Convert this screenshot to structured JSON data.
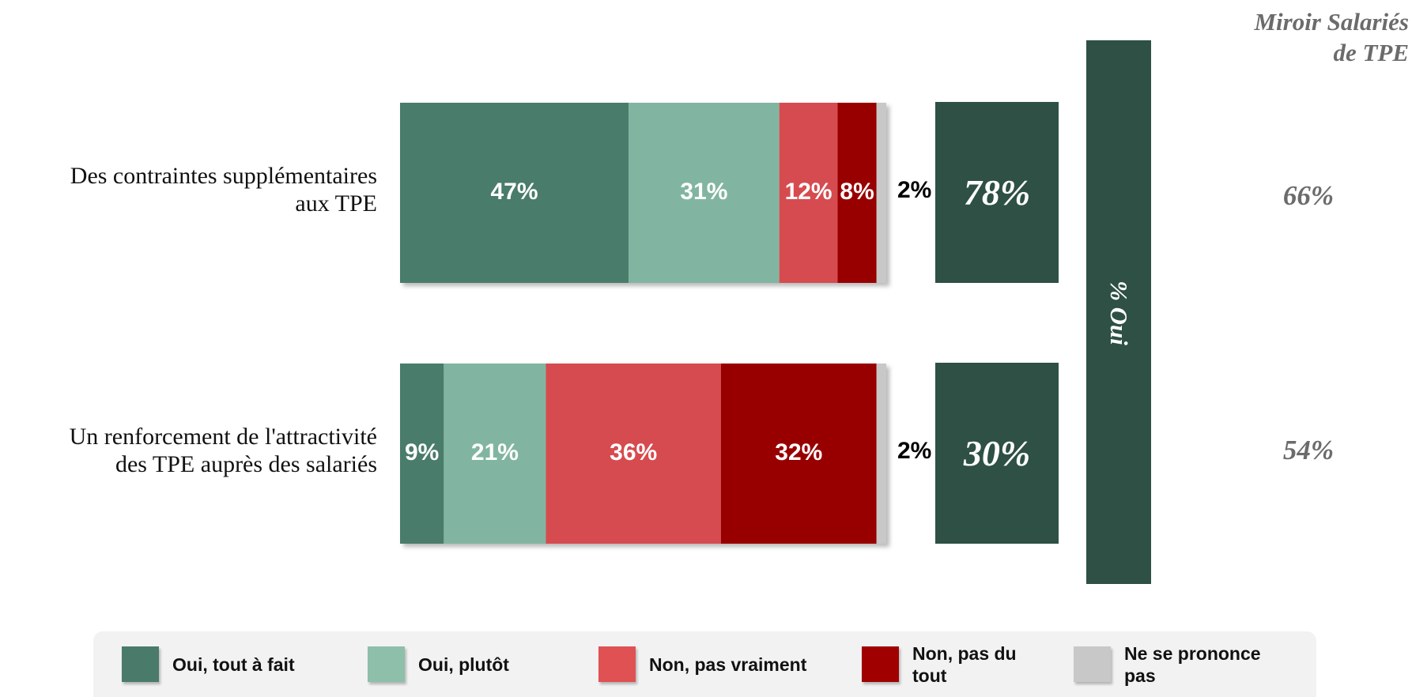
{
  "chart_data": {
    "type": "bar",
    "orientation": "horizontal",
    "stacked": true,
    "categories": [
      [
        "Des contraintes supplémentaires",
        "aux TPE"
      ],
      [
        "Un renforcement de l'attractivité",
        "des TPE auprès des salariés"
      ]
    ],
    "series": [
      {
        "name": "Oui, tout à fait",
        "color": "#4a7b6a",
        "values": [
          47,
          9
        ],
        "labels": [
          "47%",
          "9%"
        ]
      },
      {
        "name": "Oui, plutôt",
        "color": "#82b5a1",
        "values": [
          31,
          21
        ],
        "labels": [
          "31%",
          "21%"
        ]
      },
      {
        "name": "Non, pas vraiment",
        "color": "#d64c4f",
        "values": [
          12,
          36
        ],
        "labels": [
          "12%",
          "36%"
        ]
      },
      {
        "name": "Non, pas du tout",
        "color": "#980000",
        "values": [
          8,
          32
        ],
        "labels": [
          "8%",
          "32%"
        ]
      },
      {
        "name": "Ne se prononce pas",
        "color": "#c8c8c8",
        "values": [
          2,
          2
        ],
        "labels": [
          "2%",
          "2%"
        ]
      }
    ],
    "total_oui": {
      "label": "% Oui",
      "values": [
        "78%",
        "30%"
      ],
      "color": "#2e5045"
    },
    "miroir": {
      "title": [
        "Miroir Salariés",
        "de TPE"
      ],
      "values": [
        "66%",
        "54%"
      ]
    },
    "legend_position": "bottom"
  }
}
